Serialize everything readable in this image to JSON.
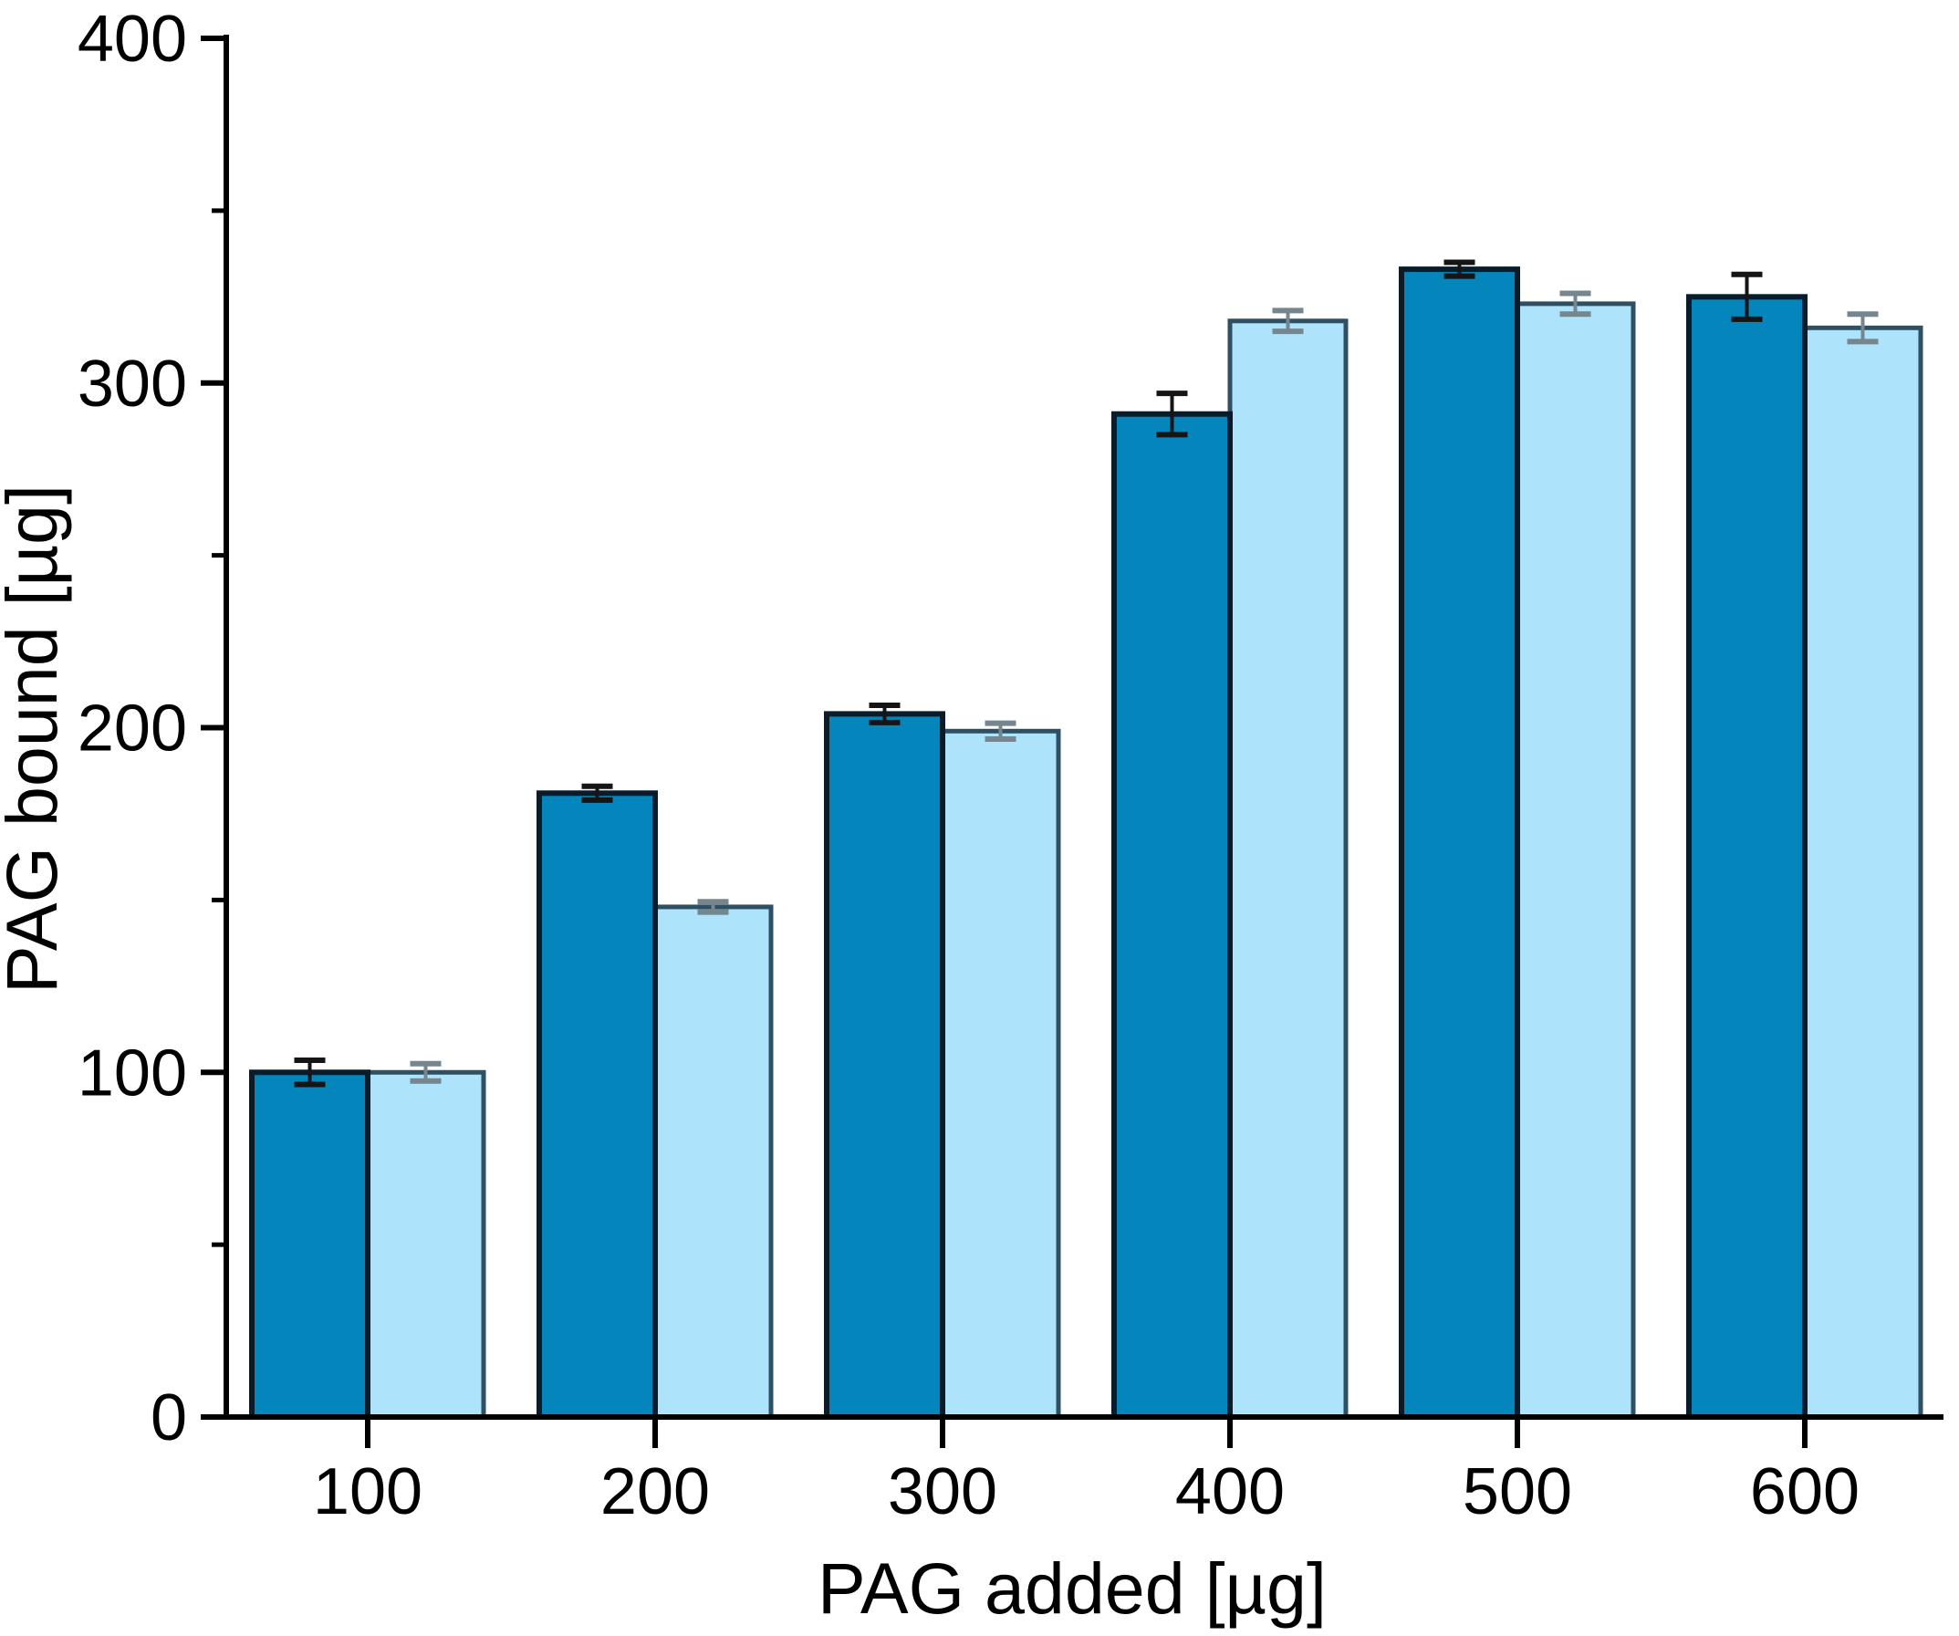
{
  "page": {
    "background": "#ffffff"
  },
  "chart_data": {
    "type": "bar",
    "title": "",
    "xlabel": "PAG added [µg]",
    "ylabel": "PAG bound [µg]",
    "categories": [
      100,
      200,
      300,
      400,
      500,
      600
    ],
    "series": [
      {
        "name": "dark-blue-bars",
        "color": "#0486BC",
        "edge_color": "#0A1C2A",
        "error_color": "#151515",
        "values": [
          100,
          181,
          204,
          291,
          333,
          325
        ],
        "errors": [
          3.5,
          2.0,
          2.5,
          6.0,
          2.0,
          6.5
        ]
      },
      {
        "name": "light-blue-bars",
        "color": "#ADE3FB",
        "edge_color": "#2F4F63",
        "error_color": "#75868E",
        "values": [
          100,
          148,
          199,
          318,
          323,
          316
        ],
        "errors": [
          2.5,
          1.5,
          2.3,
          3.0,
          3.0,
          4.0
        ]
      }
    ],
    "ylim": [
      0,
      400
    ],
    "yticks_major": [
      0,
      100,
      200,
      300,
      400
    ],
    "yticks_minor": [
      50,
      150,
      250,
      350
    ],
    "xticks": [
      100,
      200,
      300,
      400,
      500,
      600
    ],
    "legend": "none",
    "grid": false,
    "axis_color": "#000000"
  }
}
